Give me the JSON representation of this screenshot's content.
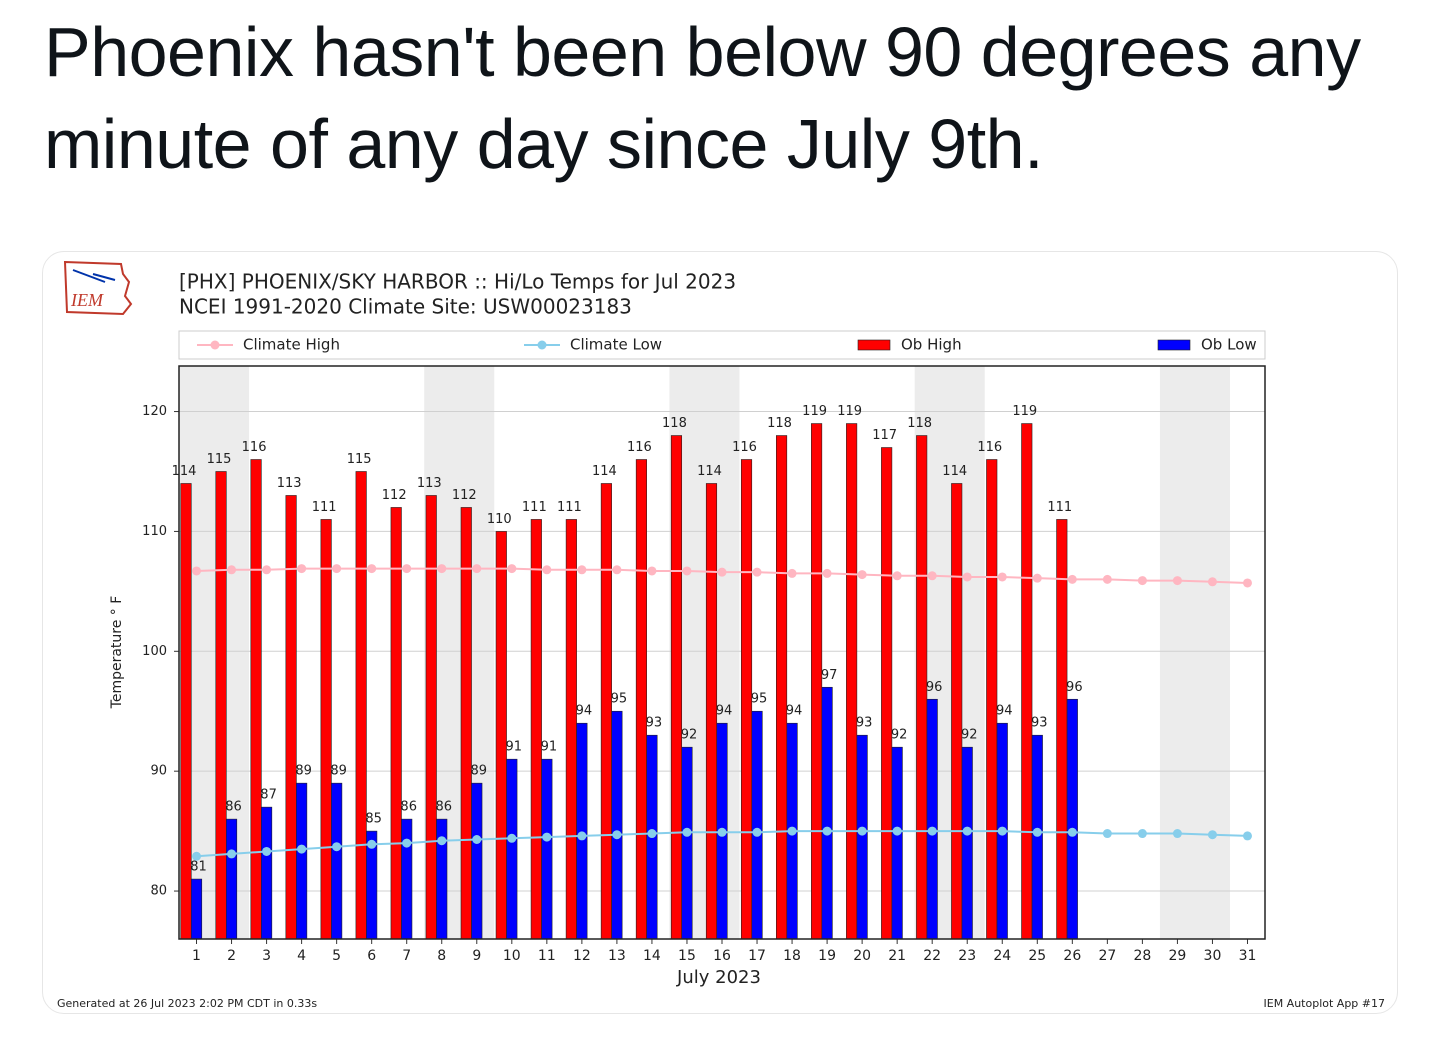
{
  "tweet_text": "Phoenix hasn't been below 90 degrees any minute of any day since July 9th.",
  "chart_data": {
    "type": "bar",
    "logo": "IEM",
    "title": "[PHX] PHOENIX/SKY HARBOR :: Hi/Lo Temps for Jul 2023",
    "subtitle": "NCEI 1991-2020 Climate Site: USW00023183",
    "x_label": "July 2023",
    "y_label": "Temperature ° F",
    "footer_left": "Generated at 26 Jul 2023 2:02 PM CDT in 0.33s",
    "footer_right": "IEM Autoplot App #17",
    "x": [
      1,
      2,
      3,
      4,
      5,
      6,
      7,
      8,
      9,
      10,
      11,
      12,
      13,
      14,
      15,
      16,
      17,
      18,
      19,
      20,
      21,
      22,
      23,
      24,
      25,
      26,
      27,
      28,
      29,
      30,
      31
    ],
    "xlim": [
      0.5,
      31.5
    ],
    "xticks": [
      1,
      2,
      3,
      4,
      5,
      6,
      7,
      8,
      9,
      10,
      11,
      12,
      13,
      14,
      15,
      16,
      17,
      18,
      19,
      20,
      21,
      22,
      23,
      24,
      25,
      26,
      27,
      28,
      29,
      30,
      31
    ],
    "ylim": [
      76,
      123.8
    ],
    "yticks": [
      80,
      90,
      100,
      110,
      120
    ],
    "grid": true,
    "series": [
      {
        "name": "Climate High",
        "color": "#ffb6c1",
        "kind": "line",
        "values": [
          106.7,
          106.8,
          106.8,
          106.9,
          106.9,
          106.9,
          106.9,
          106.9,
          106.9,
          106.9,
          106.8,
          106.8,
          106.8,
          106.7,
          106.7,
          106.6,
          106.6,
          106.5,
          106.5,
          106.4,
          106.3,
          106.3,
          106.2,
          106.2,
          106.1,
          106.0,
          106.0,
          105.9,
          105.9,
          105.8,
          105.7
        ]
      },
      {
        "name": "Climate Low",
        "color": "#87ceeb",
        "kind": "line",
        "values": [
          82.9,
          83.1,
          83.3,
          83.5,
          83.7,
          83.9,
          84.0,
          84.2,
          84.3,
          84.4,
          84.5,
          84.6,
          84.7,
          84.8,
          84.9,
          84.9,
          84.9,
          85.0,
          85.0,
          85.0,
          85.0,
          85.0,
          85.0,
          85.0,
          84.9,
          84.9,
          84.8,
          84.8,
          84.8,
          84.7,
          84.6
        ]
      },
      {
        "name": "Ob High",
        "color": "#ff0000",
        "kind": "bar",
        "values": [
          114,
          115,
          116,
          113,
          111,
          115,
          112,
          113,
          112,
          110,
          111,
          111,
          114,
          116,
          118,
          114,
          116,
          118,
          119,
          119,
          117,
          118,
          114,
          116,
          119,
          111,
          null,
          null,
          null,
          null,
          null
        ]
      },
      {
        "name": "Ob Low",
        "color": "#0000ff",
        "kind": "bar",
        "values": [
          81,
          86,
          87,
          89,
          89,
          85,
          86,
          86,
          89,
          91,
          91,
          94,
          95,
          93,
          92,
          94,
          95,
          94,
          97,
          93,
          92,
          96,
          92,
          94,
          93,
          96,
          null,
          null,
          null,
          null,
          null
        ]
      }
    ]
  }
}
